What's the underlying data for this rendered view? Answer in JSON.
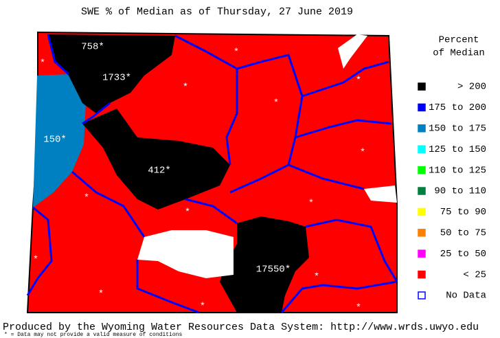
{
  "title": "SWE % of Median as of Thursday, 27 June 2019",
  "legend": {
    "title": [
      "Percent",
      "of Median"
    ],
    "items": [
      {
        "label": "> 200",
        "color": "#000000"
      },
      {
        "label": "175 to 200",
        "color": "#0000ff"
      },
      {
        "label": "150 to 175",
        "color": "#0080c0"
      },
      {
        "label": "125 to 150",
        "color": "#00ffff"
      },
      {
        "label": "110 to 125",
        "color": "#00ff00"
      },
      {
        "label": "90 to 110",
        "color": "#008040"
      },
      {
        "label": "75 to 90",
        "color": "#ffff00"
      },
      {
        "label": "50 to 75",
        "color": "#ff8000"
      },
      {
        "label": "25 to 50",
        "color": "#ff00ff"
      },
      {
        "label": "< 25",
        "color": "#ff0000"
      },
      {
        "label": "No Data",
        "color": "#ffffff"
      }
    ]
  },
  "basin_labels": [
    "758*",
    "1733*",
    "*",
    "*",
    "*",
    "*",
    "*",
    "150*",
    "412*",
    "*",
    "*",
    "*",
    "*",
    "*",
    "*",
    "17550*",
    "*",
    "*",
    "*"
  ],
  "footer": {
    "credit": "Produced by the Wyoming Water Resources Data System: http://www.wrds.uwyo.edu",
    "note": "* = Data may not provide a valid measure of conditions"
  }
}
